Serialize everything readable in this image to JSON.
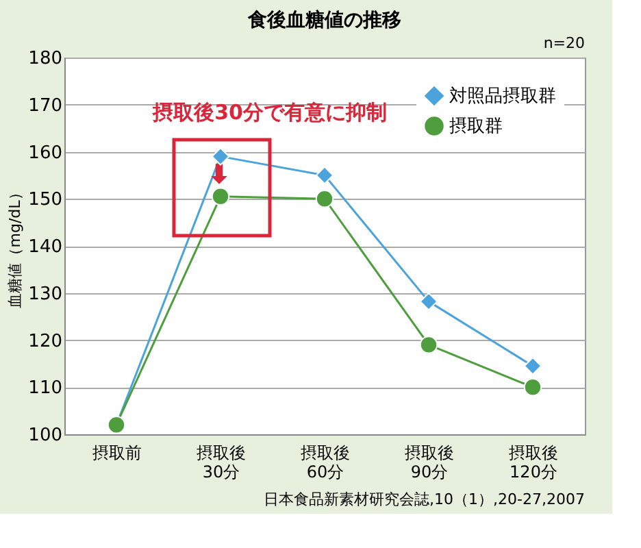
{
  "chart_data": {
    "type": "line",
    "title": "食後血糖値の推移",
    "ylabel": "血糖値（mg/dL）",
    "categories": [
      "摂取前",
      "摂取後\n30分",
      "摂取後\n60分",
      "摂取後\n90分",
      "摂取後\n120分"
    ],
    "series": [
      {
        "name": "対照品摂取群",
        "color": "#4aa3dc",
        "marker": "diamond",
        "values": [
          102,
          159,
          155,
          128.2,
          114.5
        ]
      },
      {
        "name": "摂取群",
        "color": "#4e9e3e",
        "marker": "circle",
        "values": [
          102,
          150.5,
          150,
          119,
          110
        ]
      }
    ],
    "ylim": [
      100,
      180
    ],
    "yticks": [
      100,
      110,
      120,
      130,
      140,
      150,
      160,
      170,
      180
    ],
    "grid": "y",
    "legend": "top right",
    "line_style": "solid",
    "annotations": [
      "摂取後30分で有意に抑制",
      "n=20",
      "日本食品新素材研究会誌,10（1）,20-27,2007"
    ]
  }
}
